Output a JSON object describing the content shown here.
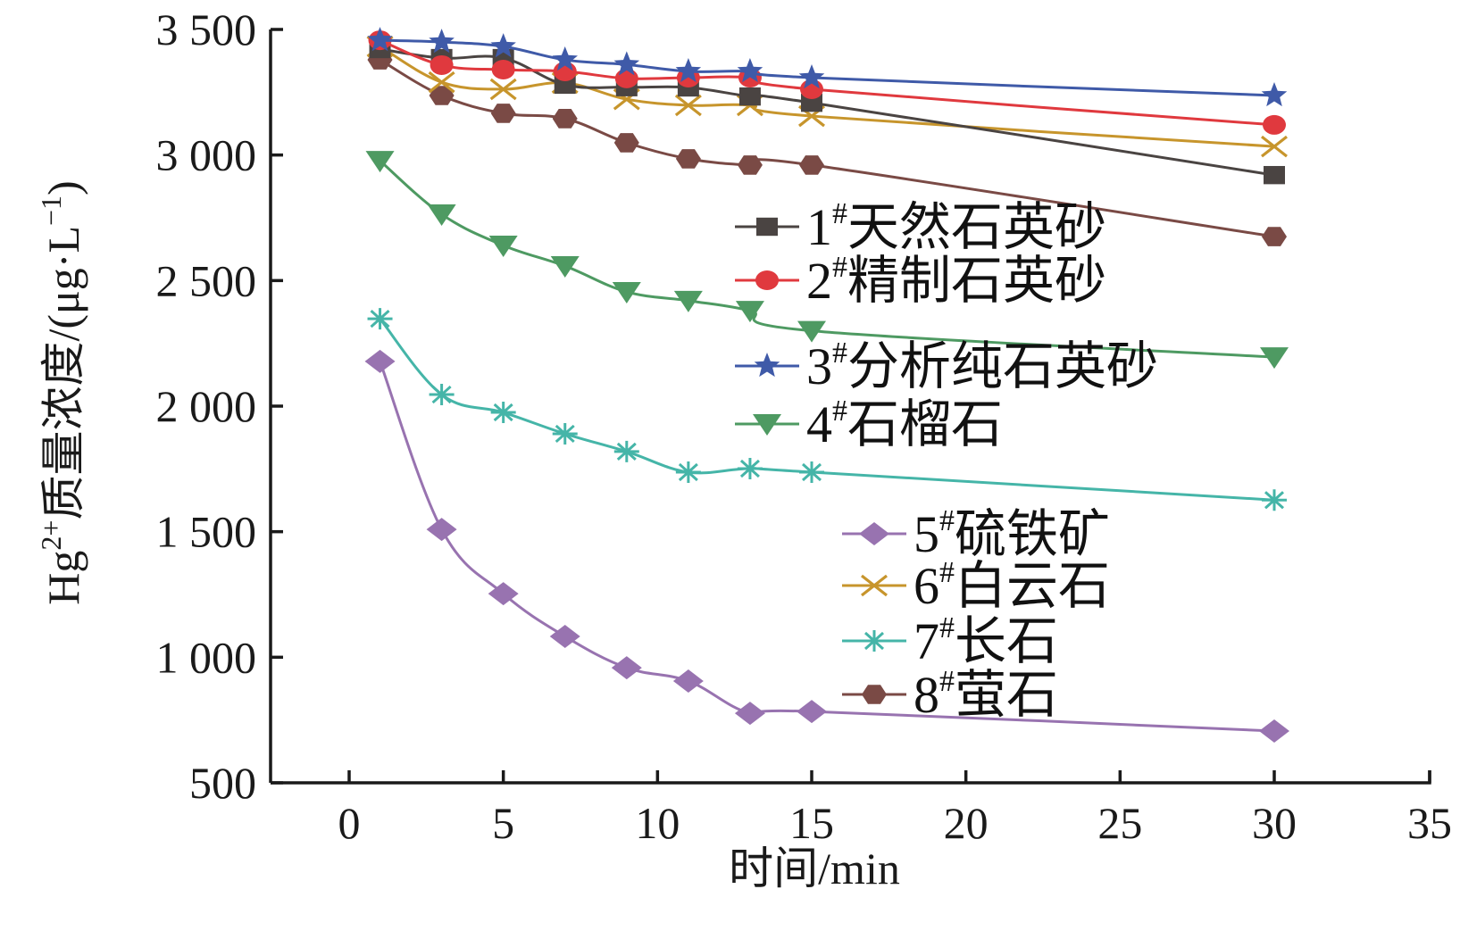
{
  "chart_data": {
    "type": "line",
    "title": "",
    "xlabel": "时间/min",
    "ylabel": "Hg²⁺质量浓度/(μg·L⁻¹)",
    "ylabel_parts": {
      "main": "Hg",
      "sup": "2+",
      "rest": "质量浓度/(μg·L",
      "unit_sup": "−1",
      "close": ")"
    },
    "xlim": [
      0,
      35
    ],
    "ylim": [
      500,
      3500
    ],
    "xticks": [
      0,
      5,
      10,
      15,
      20,
      25,
      30,
      35
    ],
    "xtick_labels": [
      "0",
      "5",
      "10",
      "15",
      "20",
      "25",
      "30",
      "35"
    ],
    "yticks": [
      500,
      1000,
      1500,
      2000,
      2500,
      3000,
      3500
    ],
    "ytick_labels": [
      "500",
      "1 000",
      "1 500",
      "2 000",
      "2 500",
      "3 000",
      "3 500"
    ],
    "grid": false,
    "legend_position": "right (two groups: upper-right and lower-right)",
    "x": [
      1,
      3,
      5,
      7,
      9,
      11,
      13,
      15,
      30
    ],
    "series": [
      {
        "name": "1#天然石英砂",
        "num": "1",
        "label": "天然石英砂",
        "marker": "square",
        "color": "#4a4442",
        "values": [
          3422,
          3386,
          3386,
          3280,
          3270,
          3269,
          3233,
          3208,
          2920
        ]
      },
      {
        "name": "2#精制石英砂",
        "num": "2",
        "label": "精制石英砂",
        "marker": "circle",
        "color": "#e0393e",
        "values": [
          3457,
          3358,
          3340,
          3333,
          3305,
          3308,
          3308,
          3262,
          3120
        ]
      },
      {
        "name": "3#分析纯石英砂",
        "num": "3",
        "label": "分析纯石英砂",
        "marker": "star",
        "color": "#3f5aa8",
        "values": [
          3457,
          3450,
          3432,
          3379,
          3360,
          3333,
          3333,
          3308,
          3237
        ]
      },
      {
        "name": "4#石榴石",
        "num": "4",
        "label": "石榴石",
        "marker": "triangle-down",
        "color": "#4e9a62",
        "values": [
          2977,
          2764,
          2640,
          2558,
          2455,
          2420,
          2380,
          2300,
          2195
        ]
      },
      {
        "name": "5#硫铁矿",
        "num": "5",
        "label": "硫铁矿",
        "marker": "diamond",
        "color": "#9873b0",
        "values": [
          2178,
          1509,
          1253,
          1083,
          958,
          905,
          777,
          784,
          706
        ]
      },
      {
        "name": "6#白云石",
        "num": "6",
        "label": "白云石",
        "marker": "x",
        "color": "#c7952c",
        "values": [
          3432,
          3290,
          3262,
          3287,
          3222,
          3198,
          3198,
          3155,
          3034
        ]
      },
      {
        "name": "7#长石",
        "num": "7",
        "label": "长石",
        "marker": "asterisk",
        "color": "#45b5a8",
        "values": [
          2348,
          2046,
          1975,
          1890,
          1819,
          1737,
          1751,
          1737,
          1626
        ]
      },
      {
        "name": "8#萤石",
        "num": "8",
        "label": "萤石",
        "marker": "hexagon",
        "color": "#7a4a45",
        "values": [
          3379,
          3237,
          3166,
          3145,
          3049,
          2985,
          2960,
          2960,
          2675
        ]
      }
    ],
    "legend_hash": "#"
  }
}
